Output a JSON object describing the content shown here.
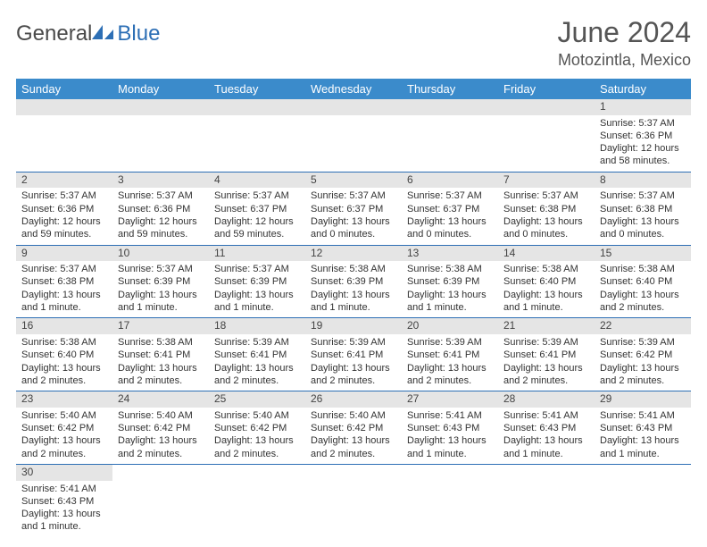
{
  "logo": {
    "word1": "General",
    "word2": "Blue"
  },
  "title": "June 2024",
  "location": "Motozintla, Mexico",
  "colors": {
    "header_bg": "#3b8bcb",
    "header_text": "#ffffff",
    "border": "#2d6fb5",
    "daynum_bg": "#e5e5e5",
    "logo_blue": "#2d6fb5",
    "logo_gray": "#4a4a4a",
    "text": "#333333"
  },
  "weekdays": [
    "Sunday",
    "Monday",
    "Tuesday",
    "Wednesday",
    "Thursday",
    "Friday",
    "Saturday"
  ],
  "weeks": [
    [
      null,
      null,
      null,
      null,
      null,
      null,
      {
        "n": "1",
        "sr": "Sunrise: 5:37 AM",
        "ss": "Sunset: 6:36 PM",
        "dl": "Daylight: 12 hours and 58 minutes."
      }
    ],
    [
      {
        "n": "2",
        "sr": "Sunrise: 5:37 AM",
        "ss": "Sunset: 6:36 PM",
        "dl": "Daylight: 12 hours and 59 minutes."
      },
      {
        "n": "3",
        "sr": "Sunrise: 5:37 AM",
        "ss": "Sunset: 6:36 PM",
        "dl": "Daylight: 12 hours and 59 minutes."
      },
      {
        "n": "4",
        "sr": "Sunrise: 5:37 AM",
        "ss": "Sunset: 6:37 PM",
        "dl": "Daylight: 12 hours and 59 minutes."
      },
      {
        "n": "5",
        "sr": "Sunrise: 5:37 AM",
        "ss": "Sunset: 6:37 PM",
        "dl": "Daylight: 13 hours and 0 minutes."
      },
      {
        "n": "6",
        "sr": "Sunrise: 5:37 AM",
        "ss": "Sunset: 6:37 PM",
        "dl": "Daylight: 13 hours and 0 minutes."
      },
      {
        "n": "7",
        "sr": "Sunrise: 5:37 AM",
        "ss": "Sunset: 6:38 PM",
        "dl": "Daylight: 13 hours and 0 minutes."
      },
      {
        "n": "8",
        "sr": "Sunrise: 5:37 AM",
        "ss": "Sunset: 6:38 PM",
        "dl": "Daylight: 13 hours and 0 minutes."
      }
    ],
    [
      {
        "n": "9",
        "sr": "Sunrise: 5:37 AM",
        "ss": "Sunset: 6:38 PM",
        "dl": "Daylight: 13 hours and 1 minute."
      },
      {
        "n": "10",
        "sr": "Sunrise: 5:37 AM",
        "ss": "Sunset: 6:39 PM",
        "dl": "Daylight: 13 hours and 1 minute."
      },
      {
        "n": "11",
        "sr": "Sunrise: 5:37 AM",
        "ss": "Sunset: 6:39 PM",
        "dl": "Daylight: 13 hours and 1 minute."
      },
      {
        "n": "12",
        "sr": "Sunrise: 5:38 AM",
        "ss": "Sunset: 6:39 PM",
        "dl": "Daylight: 13 hours and 1 minute."
      },
      {
        "n": "13",
        "sr": "Sunrise: 5:38 AM",
        "ss": "Sunset: 6:39 PM",
        "dl": "Daylight: 13 hours and 1 minute."
      },
      {
        "n": "14",
        "sr": "Sunrise: 5:38 AM",
        "ss": "Sunset: 6:40 PM",
        "dl": "Daylight: 13 hours and 1 minute."
      },
      {
        "n": "15",
        "sr": "Sunrise: 5:38 AM",
        "ss": "Sunset: 6:40 PM",
        "dl": "Daylight: 13 hours and 2 minutes."
      }
    ],
    [
      {
        "n": "16",
        "sr": "Sunrise: 5:38 AM",
        "ss": "Sunset: 6:40 PM",
        "dl": "Daylight: 13 hours and 2 minutes."
      },
      {
        "n": "17",
        "sr": "Sunrise: 5:38 AM",
        "ss": "Sunset: 6:41 PM",
        "dl": "Daylight: 13 hours and 2 minutes."
      },
      {
        "n": "18",
        "sr": "Sunrise: 5:39 AM",
        "ss": "Sunset: 6:41 PM",
        "dl": "Daylight: 13 hours and 2 minutes."
      },
      {
        "n": "19",
        "sr": "Sunrise: 5:39 AM",
        "ss": "Sunset: 6:41 PM",
        "dl": "Daylight: 13 hours and 2 minutes."
      },
      {
        "n": "20",
        "sr": "Sunrise: 5:39 AM",
        "ss": "Sunset: 6:41 PM",
        "dl": "Daylight: 13 hours and 2 minutes."
      },
      {
        "n": "21",
        "sr": "Sunrise: 5:39 AM",
        "ss": "Sunset: 6:41 PM",
        "dl": "Daylight: 13 hours and 2 minutes."
      },
      {
        "n": "22",
        "sr": "Sunrise: 5:39 AM",
        "ss": "Sunset: 6:42 PM",
        "dl": "Daylight: 13 hours and 2 minutes."
      }
    ],
    [
      {
        "n": "23",
        "sr": "Sunrise: 5:40 AM",
        "ss": "Sunset: 6:42 PM",
        "dl": "Daylight: 13 hours and 2 minutes."
      },
      {
        "n": "24",
        "sr": "Sunrise: 5:40 AM",
        "ss": "Sunset: 6:42 PM",
        "dl": "Daylight: 13 hours and 2 minutes."
      },
      {
        "n": "25",
        "sr": "Sunrise: 5:40 AM",
        "ss": "Sunset: 6:42 PM",
        "dl": "Daylight: 13 hours and 2 minutes."
      },
      {
        "n": "26",
        "sr": "Sunrise: 5:40 AM",
        "ss": "Sunset: 6:42 PM",
        "dl": "Daylight: 13 hours and 2 minutes."
      },
      {
        "n": "27",
        "sr": "Sunrise: 5:41 AM",
        "ss": "Sunset: 6:43 PM",
        "dl": "Daylight: 13 hours and 1 minute."
      },
      {
        "n": "28",
        "sr": "Sunrise: 5:41 AM",
        "ss": "Sunset: 6:43 PM",
        "dl": "Daylight: 13 hours and 1 minute."
      },
      {
        "n": "29",
        "sr": "Sunrise: 5:41 AM",
        "ss": "Sunset: 6:43 PM",
        "dl": "Daylight: 13 hours and 1 minute."
      }
    ],
    [
      {
        "n": "30",
        "sr": "Sunrise: 5:41 AM",
        "ss": "Sunset: 6:43 PM",
        "dl": "Daylight: 13 hours and 1 minute."
      },
      null,
      null,
      null,
      null,
      null,
      null
    ]
  ]
}
